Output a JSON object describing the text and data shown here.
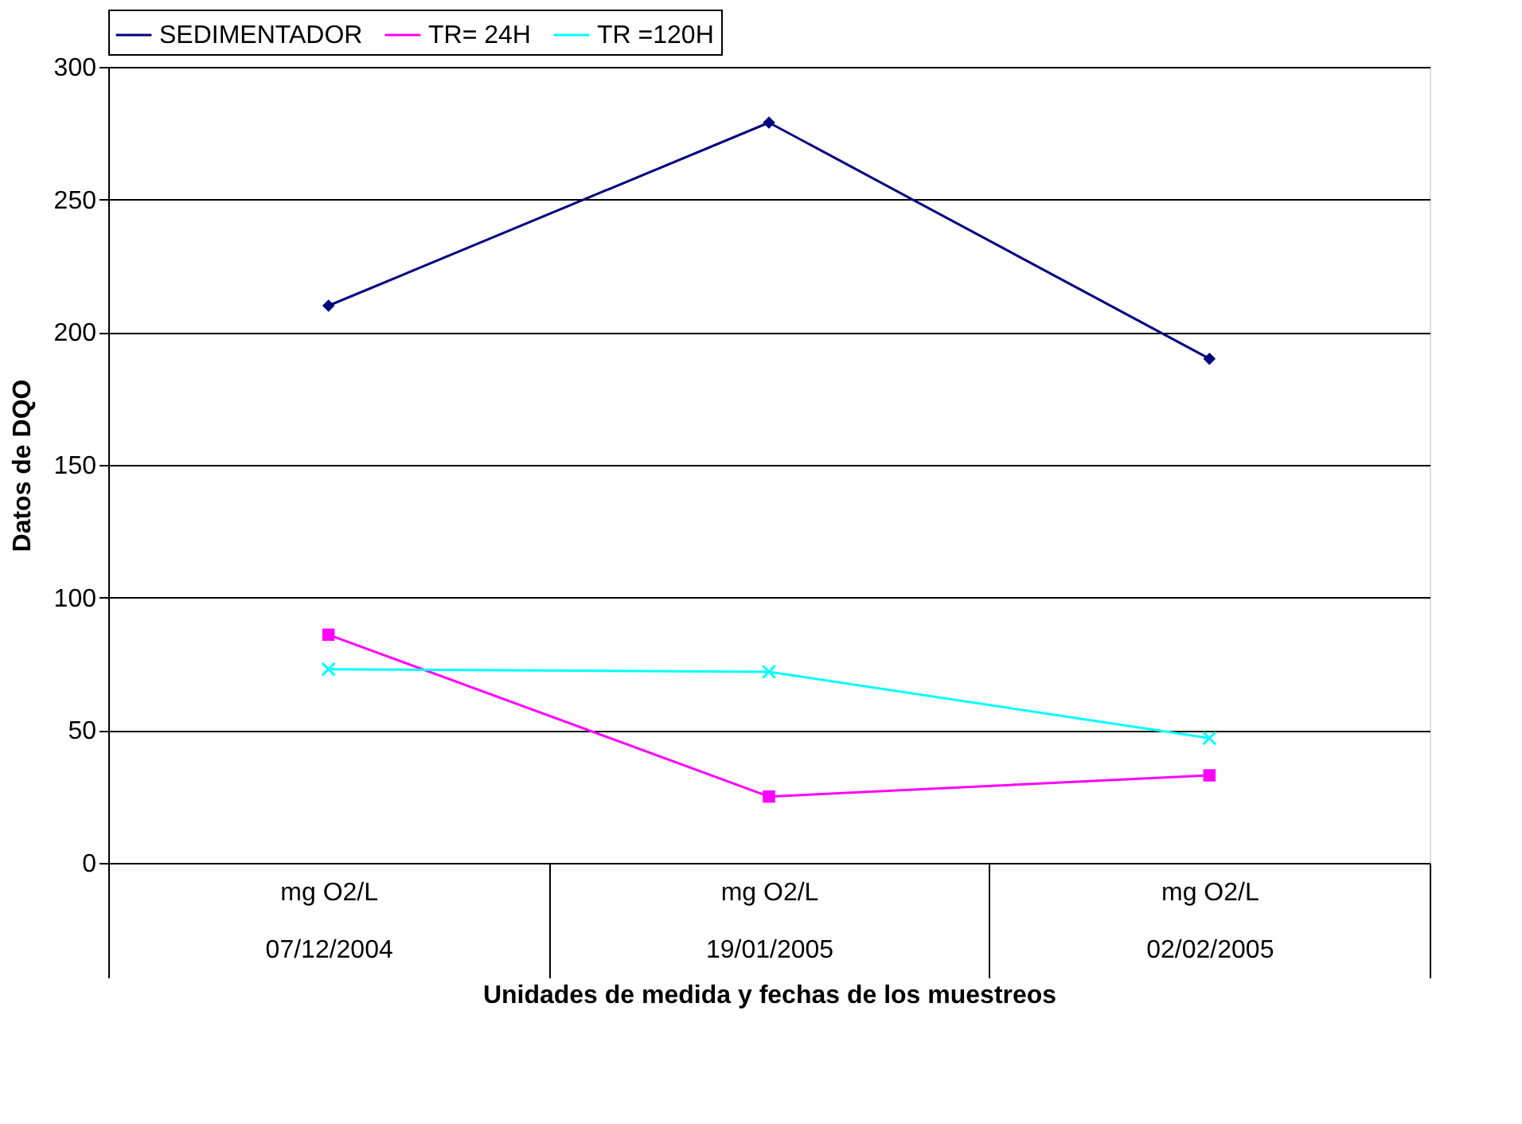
{
  "chart_data": {
    "type": "line",
    "xlabel": "Unidades de medida y fechas de los muestreos",
    "ylabel": "Datos de DQO",
    "categories": [
      "mg O2/L\n07/12/2004",
      "mg O2/L\n19/01/2005",
      "mg O2/L\n02/02/2005"
    ],
    "series": [
      {
        "name": "SEDIMENTADOR",
        "color": "#000080",
        "marker": "diamond",
        "values": [
          210,
          279,
          190
        ]
      },
      {
        "name": "TR= 24H",
        "color": "#ff00ff",
        "marker": "square",
        "values": [
          86,
          25,
          33
        ]
      },
      {
        "name": "TR =120H",
        "color": "#00ffff",
        "marker": "cross",
        "values": [
          73,
          72,
          47
        ]
      }
    ],
    "ylim": [
      0,
      300
    ],
    "yticks": [
      0,
      50,
      100,
      150,
      200,
      250,
      300
    ],
    "grid": "y",
    "legend": "top",
    "line_style": "solid"
  }
}
